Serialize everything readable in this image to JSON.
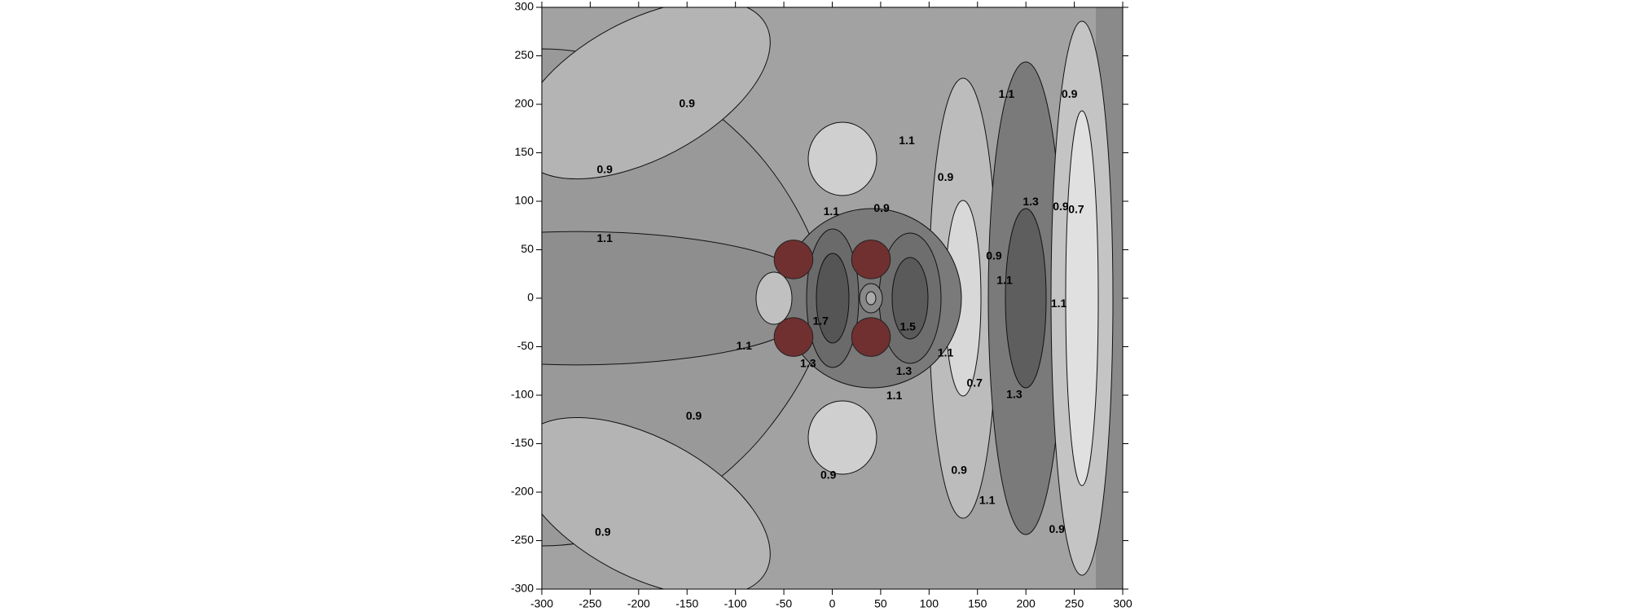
{
  "chart_data": {
    "type": "contour",
    "xlim": [
      -300,
      300
    ],
    "ylim": [
      -300,
      300
    ],
    "xticks": [
      -300,
      -250,
      -200,
      -150,
      -100,
      -50,
      0,
      50,
      100,
      150,
      200,
      250,
      300
    ],
    "yticks": [
      -300,
      -250,
      -200,
      -150,
      -100,
      -50,
      0,
      50,
      100,
      150,
      200,
      250,
      300
    ],
    "contour_labels": {
      "x": [
        -150,
        -235,
        -235,
        -91,
        -143,
        -237,
        -1,
        51,
        77,
        117,
        180,
        245,
        205,
        236,
        252,
        167,
        178,
        234,
        -12,
        78,
        -25,
        74,
        117,
        64,
        147,
        188,
        -4,
        131,
        160,
        232
      ],
      "y": [
        200,
        132,
        61,
        -50,
        -122,
        -242,
        89,
        92,
        162,
        124,
        210,
        210,
        99,
        94,
        91,
        43,
        18,
        -6,
        -24,
        -30,
        -68,
        -76,
        -57,
        -101,
        -88,
        -100,
        -183,
        -178,
        -209,
        -239
      ],
      "values": [
        0.9,
        0.9,
        1.1,
        1.1,
        0.9,
        0.9,
        1.1,
        0.9,
        1.1,
        0.9,
        1.1,
        0.9,
        1.3,
        0.9,
        0.7,
        0.9,
        1.1,
        1.1,
        1.7,
        1.5,
        1.3,
        1.3,
        1.1,
        1.1,
        0.7,
        1.3,
        0.9,
        0.9,
        1.1,
        0.9
      ]
    },
    "scatterers": {
      "x": [
        -40,
        40,
        -40,
        40
      ],
      "y": [
        40,
        40,
        -40,
        -40
      ],
      "radius": 20,
      "color": "#70302f"
    }
  }
}
